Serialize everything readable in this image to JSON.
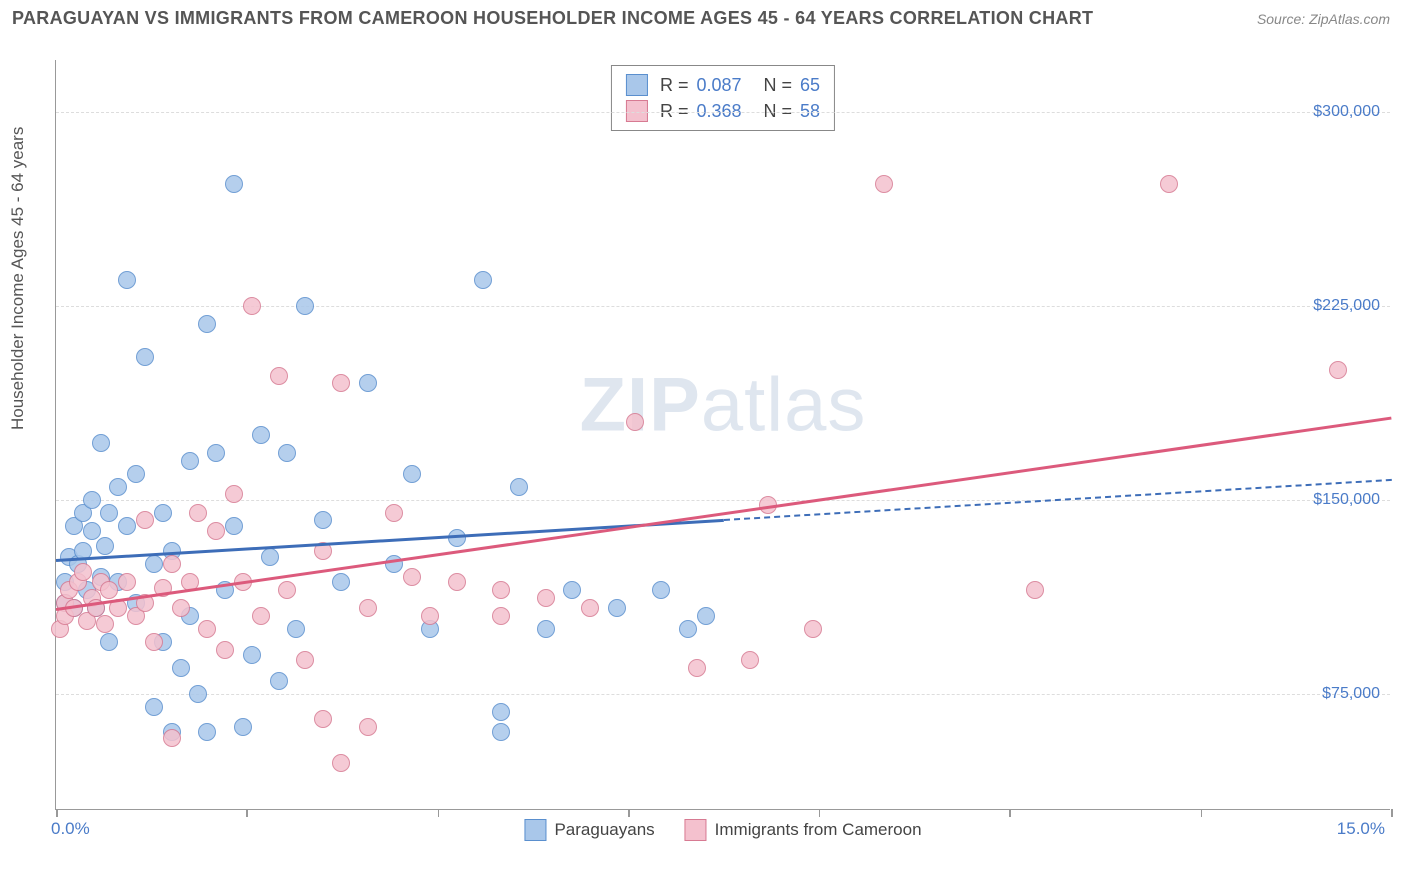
{
  "header": {
    "title": "PARAGUAYAN VS IMMIGRANTS FROM CAMEROON HOUSEHOLDER INCOME AGES 45 - 64 YEARS CORRELATION CHART",
    "source": "Source: ZipAtlas.com"
  },
  "chart": {
    "type": "scatter",
    "watermark": "ZIPatlas",
    "y_axis": {
      "title": "Householder Income Ages 45 - 64 years",
      "min": 30000,
      "max": 320000,
      "ticks": [
        75000,
        150000,
        225000,
        300000
      ],
      "tick_labels": [
        "$75,000",
        "$150,000",
        "$225,000",
        "$300,000"
      ],
      "label_color": "#4a7bc8",
      "grid_color": "#dddddd"
    },
    "x_axis": {
      "min": 0.0,
      "max": 15.0,
      "left_label": "0.0%",
      "right_label": "15.0%",
      "label_color": "#4a7bc8",
      "tick_positions": [
        0,
        2.14,
        4.29,
        6.43,
        8.57,
        10.71,
        12.86,
        15.0
      ]
    },
    "background_color": "#ffffff",
    "marker_radius": 9,
    "series": [
      {
        "id": "paraguayans",
        "label": "Paraguayans",
        "fill": "#a9c7ea",
        "stroke": "#5a8fce",
        "r_value": "0.087",
        "n_value": "65",
        "trend": {
          "y_at_xmin": 127000,
          "y_at_xmax": 158000,
          "solid_until_x": 7.5,
          "color": "#3d6db8"
        },
        "points": [
          [
            0.1,
            110000
          ],
          [
            0.1,
            118000
          ],
          [
            0.15,
            128000
          ],
          [
            0.2,
            140000
          ],
          [
            0.2,
            108000
          ],
          [
            0.25,
            125000
          ],
          [
            0.3,
            145000
          ],
          [
            0.3,
            130000
          ],
          [
            0.35,
            115000
          ],
          [
            0.4,
            138000
          ],
          [
            0.4,
            150000
          ],
          [
            0.45,
            108000
          ],
          [
            0.5,
            172000
          ],
          [
            0.5,
            120000
          ],
          [
            0.55,
            132000
          ],
          [
            0.6,
            145000
          ],
          [
            0.6,
            95000
          ],
          [
            0.7,
            155000
          ],
          [
            0.7,
            118000
          ],
          [
            0.8,
            140000
          ],
          [
            0.8,
            235000
          ],
          [
            0.9,
            160000
          ],
          [
            0.9,
            110000
          ],
          [
            1.0,
            205000
          ],
          [
            1.1,
            125000
          ],
          [
            1.1,
            70000
          ],
          [
            1.2,
            145000
          ],
          [
            1.2,
            95000
          ],
          [
            1.3,
            130000
          ],
          [
            1.3,
            60000
          ],
          [
            1.4,
            85000
          ],
          [
            1.5,
            165000
          ],
          [
            1.5,
            105000
          ],
          [
            1.6,
            75000
          ],
          [
            1.7,
            218000
          ],
          [
            1.7,
            60000
          ],
          [
            1.8,
            168000
          ],
          [
            1.9,
            115000
          ],
          [
            2.0,
            272000
          ],
          [
            2.0,
            140000
          ],
          [
            2.1,
            62000
          ],
          [
            2.2,
            90000
          ],
          [
            2.3,
            175000
          ],
          [
            2.4,
            128000
          ],
          [
            2.5,
            80000
          ],
          [
            2.6,
            168000
          ],
          [
            2.7,
            100000
          ],
          [
            2.8,
            225000
          ],
          [
            3.0,
            142000
          ],
          [
            3.2,
            118000
          ],
          [
            3.5,
            195000
          ],
          [
            3.8,
            125000
          ],
          [
            4.0,
            160000
          ],
          [
            4.2,
            100000
          ],
          [
            4.5,
            135000
          ],
          [
            4.8,
            235000
          ],
          [
            5.0,
            60000
          ],
          [
            5.2,
            155000
          ],
          [
            5.0,
            68000
          ],
          [
            5.5,
            100000
          ],
          [
            5.8,
            115000
          ],
          [
            6.3,
            108000
          ],
          [
            6.8,
            115000
          ],
          [
            7.1,
            100000
          ],
          [
            7.3,
            105000
          ]
        ]
      },
      {
        "id": "cameroon",
        "label": "Immigrants from Cameroon",
        "fill": "#f4c1ce",
        "stroke": "#d77a92",
        "r_value": "0.368",
        "n_value": "58",
        "trend": {
          "y_at_xmin": 108000,
          "y_at_xmax": 182000,
          "solid_until_x": 15.0,
          "color": "#dc5a7c"
        },
        "points": [
          [
            0.05,
            100000
          ],
          [
            0.1,
            110000
          ],
          [
            0.1,
            105000
          ],
          [
            0.15,
            115000
          ],
          [
            0.2,
            108000
          ],
          [
            0.25,
            118000
          ],
          [
            0.3,
            122000
          ],
          [
            0.35,
            103000
          ],
          [
            0.4,
            112000
          ],
          [
            0.45,
            108000
          ],
          [
            0.5,
            118000
          ],
          [
            0.55,
            102000
          ],
          [
            0.6,
            115000
          ],
          [
            0.7,
            108000
          ],
          [
            0.8,
            118000
          ],
          [
            0.9,
            105000
          ],
          [
            1.0,
            110000
          ],
          [
            1.0,
            142000
          ],
          [
            1.1,
            95000
          ],
          [
            1.2,
            116000
          ],
          [
            1.3,
            125000
          ],
          [
            1.3,
            58000
          ],
          [
            1.4,
            108000
          ],
          [
            1.5,
            118000
          ],
          [
            1.6,
            145000
          ],
          [
            1.7,
            100000
          ],
          [
            1.8,
            138000
          ],
          [
            1.9,
            92000
          ],
          [
            2.0,
            152000
          ],
          [
            2.1,
            118000
          ],
          [
            2.2,
            225000
          ],
          [
            2.3,
            105000
          ],
          [
            2.5,
            198000
          ],
          [
            2.6,
            115000
          ],
          [
            2.8,
            88000
          ],
          [
            3.0,
            130000
          ],
          [
            3.0,
            65000
          ],
          [
            3.2,
            195000
          ],
          [
            3.2,
            48000
          ],
          [
            3.5,
            108000
          ],
          [
            3.5,
            62000
          ],
          [
            3.8,
            145000
          ],
          [
            4.0,
            120000
          ],
          [
            4.2,
            105000
          ],
          [
            4.5,
            118000
          ],
          [
            5.0,
            105000
          ],
          [
            5.0,
            115000
          ],
          [
            5.5,
            112000
          ],
          [
            6.0,
            108000
          ],
          [
            6.5,
            180000
          ],
          [
            7.2,
            85000
          ],
          [
            7.8,
            88000
          ],
          [
            8.0,
            148000
          ],
          [
            8.5,
            100000
          ],
          [
            9.3,
            272000
          ],
          [
            11.0,
            115000
          ],
          [
            12.5,
            272000
          ],
          [
            14.4,
            200000
          ]
        ]
      }
    ],
    "stats_legend": {
      "r_prefix": "R =",
      "n_prefix": "N ="
    }
  }
}
